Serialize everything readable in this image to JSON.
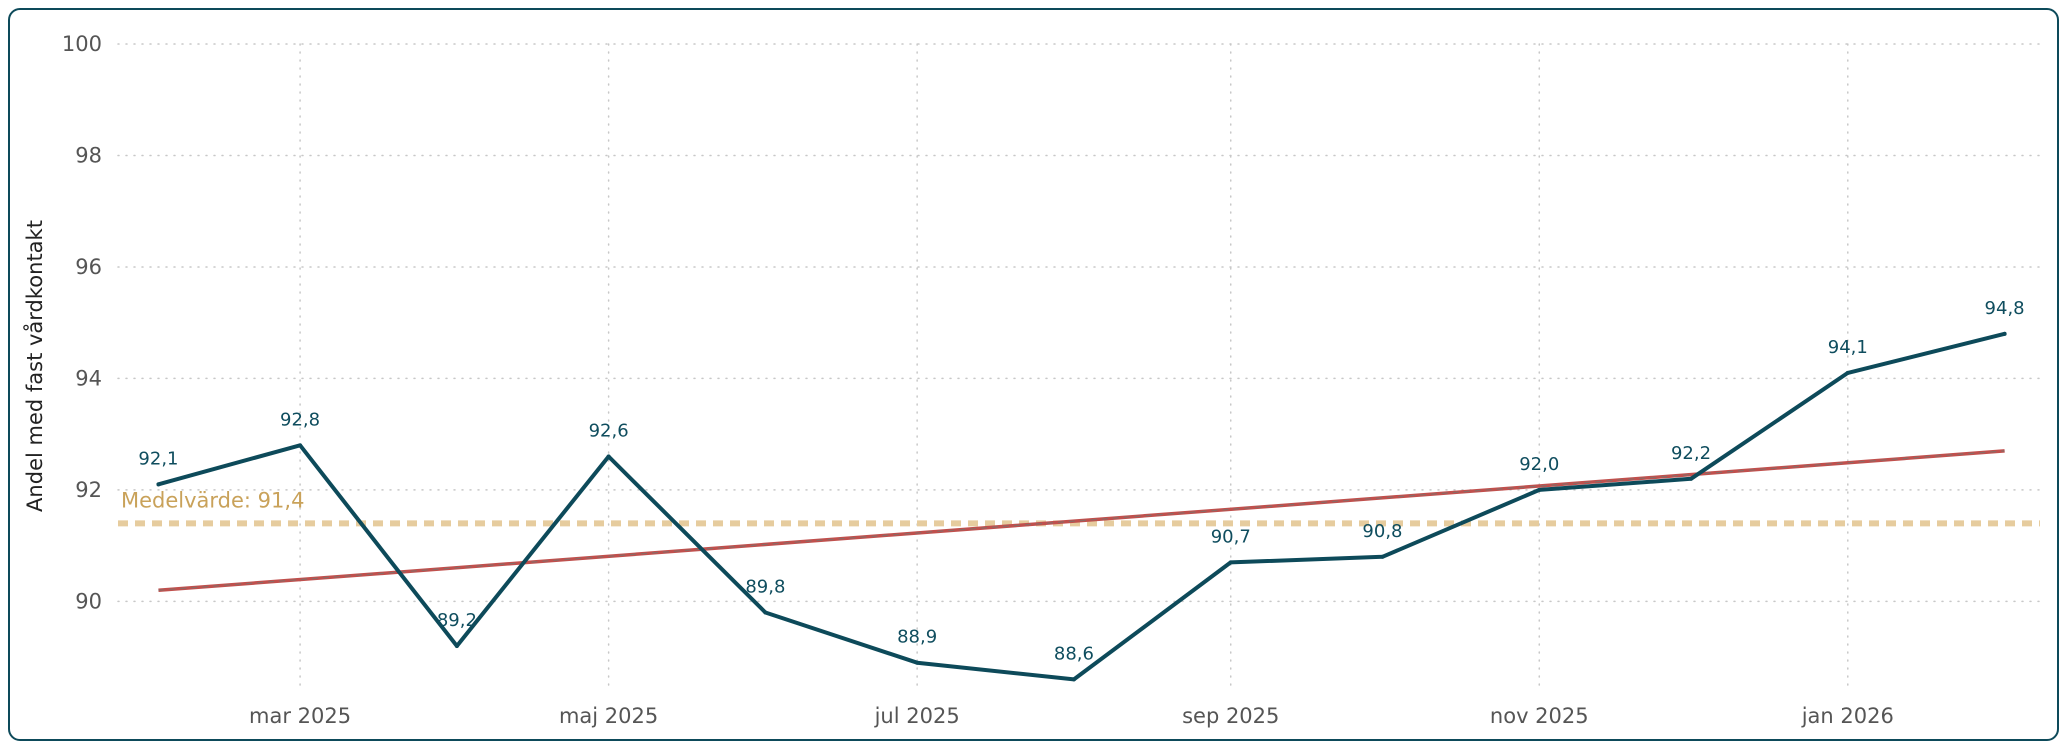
{
  "chart_data": {
    "type": "line",
    "title": "",
    "xlabel": "",
    "ylabel": "Andel med fast vårdkontakt",
    "ylim": [
      88.5,
      100
    ],
    "yticks": [
      90,
      92,
      94,
      96,
      98,
      100
    ],
    "xlim": [
      "2025-01-24",
      "2026-02-08"
    ],
    "xticks": [
      {
        "date": "2025-03-01",
        "label": "mar 2025"
      },
      {
        "date": "2025-05-01",
        "label": "maj 2025"
      },
      {
        "date": "2025-07-01",
        "label": "jul 2025"
      },
      {
        "date": "2025-09-01",
        "label": "sep 2025"
      },
      {
        "date": "2025-11-01",
        "label": "nov 2025"
      },
      {
        "date": "2026-01-01",
        "label": "jan 2026"
      }
    ],
    "grid": true,
    "series": [
      {
        "color": "#0d4a5a",
        "points": [
          {
            "date": "2025-02-01",
            "value": 92.1,
            "label": "92,1"
          },
          {
            "date": "2025-03-01",
            "value": 92.8,
            "label": "92,8"
          },
          {
            "date": "2025-04-01",
            "value": 89.2,
            "label": "89,2"
          },
          {
            "date": "2025-05-01",
            "value": 92.6,
            "label": "92,6"
          },
          {
            "date": "2025-06-01",
            "value": 89.8,
            "label": "89,8"
          },
          {
            "date": "2025-07-01",
            "value": 88.9,
            "label": "88,9"
          },
          {
            "date": "2025-08-01",
            "value": 88.6,
            "label": "88,6"
          },
          {
            "date": "2025-09-01",
            "value": 90.7,
            "label": "90,7"
          },
          {
            "date": "2025-10-01",
            "value": 90.8,
            "label": "90,8"
          },
          {
            "date": "2025-11-01",
            "value": 92.0,
            "label": "92,0"
          },
          {
            "date": "2025-12-01",
            "value": 92.2,
            "label": "92,2"
          },
          {
            "date": "2026-01-01",
            "value": 94.1,
            "label": "94,1"
          },
          {
            "date": "2026-02-01",
            "value": 94.8,
            "label": "94,8"
          }
        ]
      }
    ],
    "trendline": {
      "color": "#c0504d",
      "start": {
        "date": "2025-02-01",
        "value": 90.2
      },
      "end": {
        "date": "2026-02-01",
        "value": 92.7
      }
    },
    "mean_line": {
      "value": 91.4,
      "label": "Medelvärde: 91,4",
      "color": "#e6cc9e"
    }
  }
}
